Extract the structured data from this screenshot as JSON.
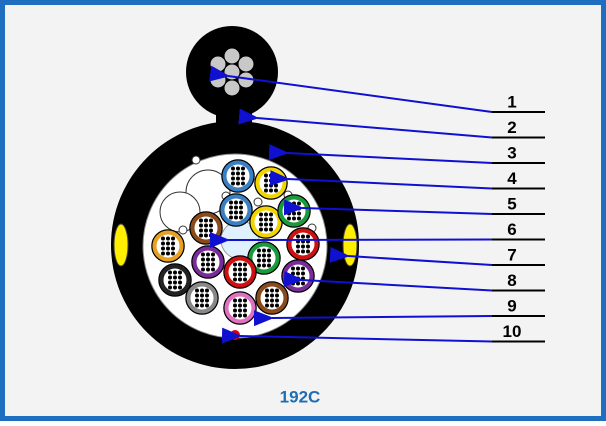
{
  "diagram": {
    "callouts": [
      {
        "label": "1"
      },
      {
        "label": "2"
      },
      {
        "label": "3"
      },
      {
        "label": "4"
      },
      {
        "label": "5"
      },
      {
        "label": "6"
      },
      {
        "label": "7"
      },
      {
        "label": "8"
      },
      {
        "label": "9"
      },
      {
        "label": "10"
      }
    ],
    "caption": "192C"
  }
}
